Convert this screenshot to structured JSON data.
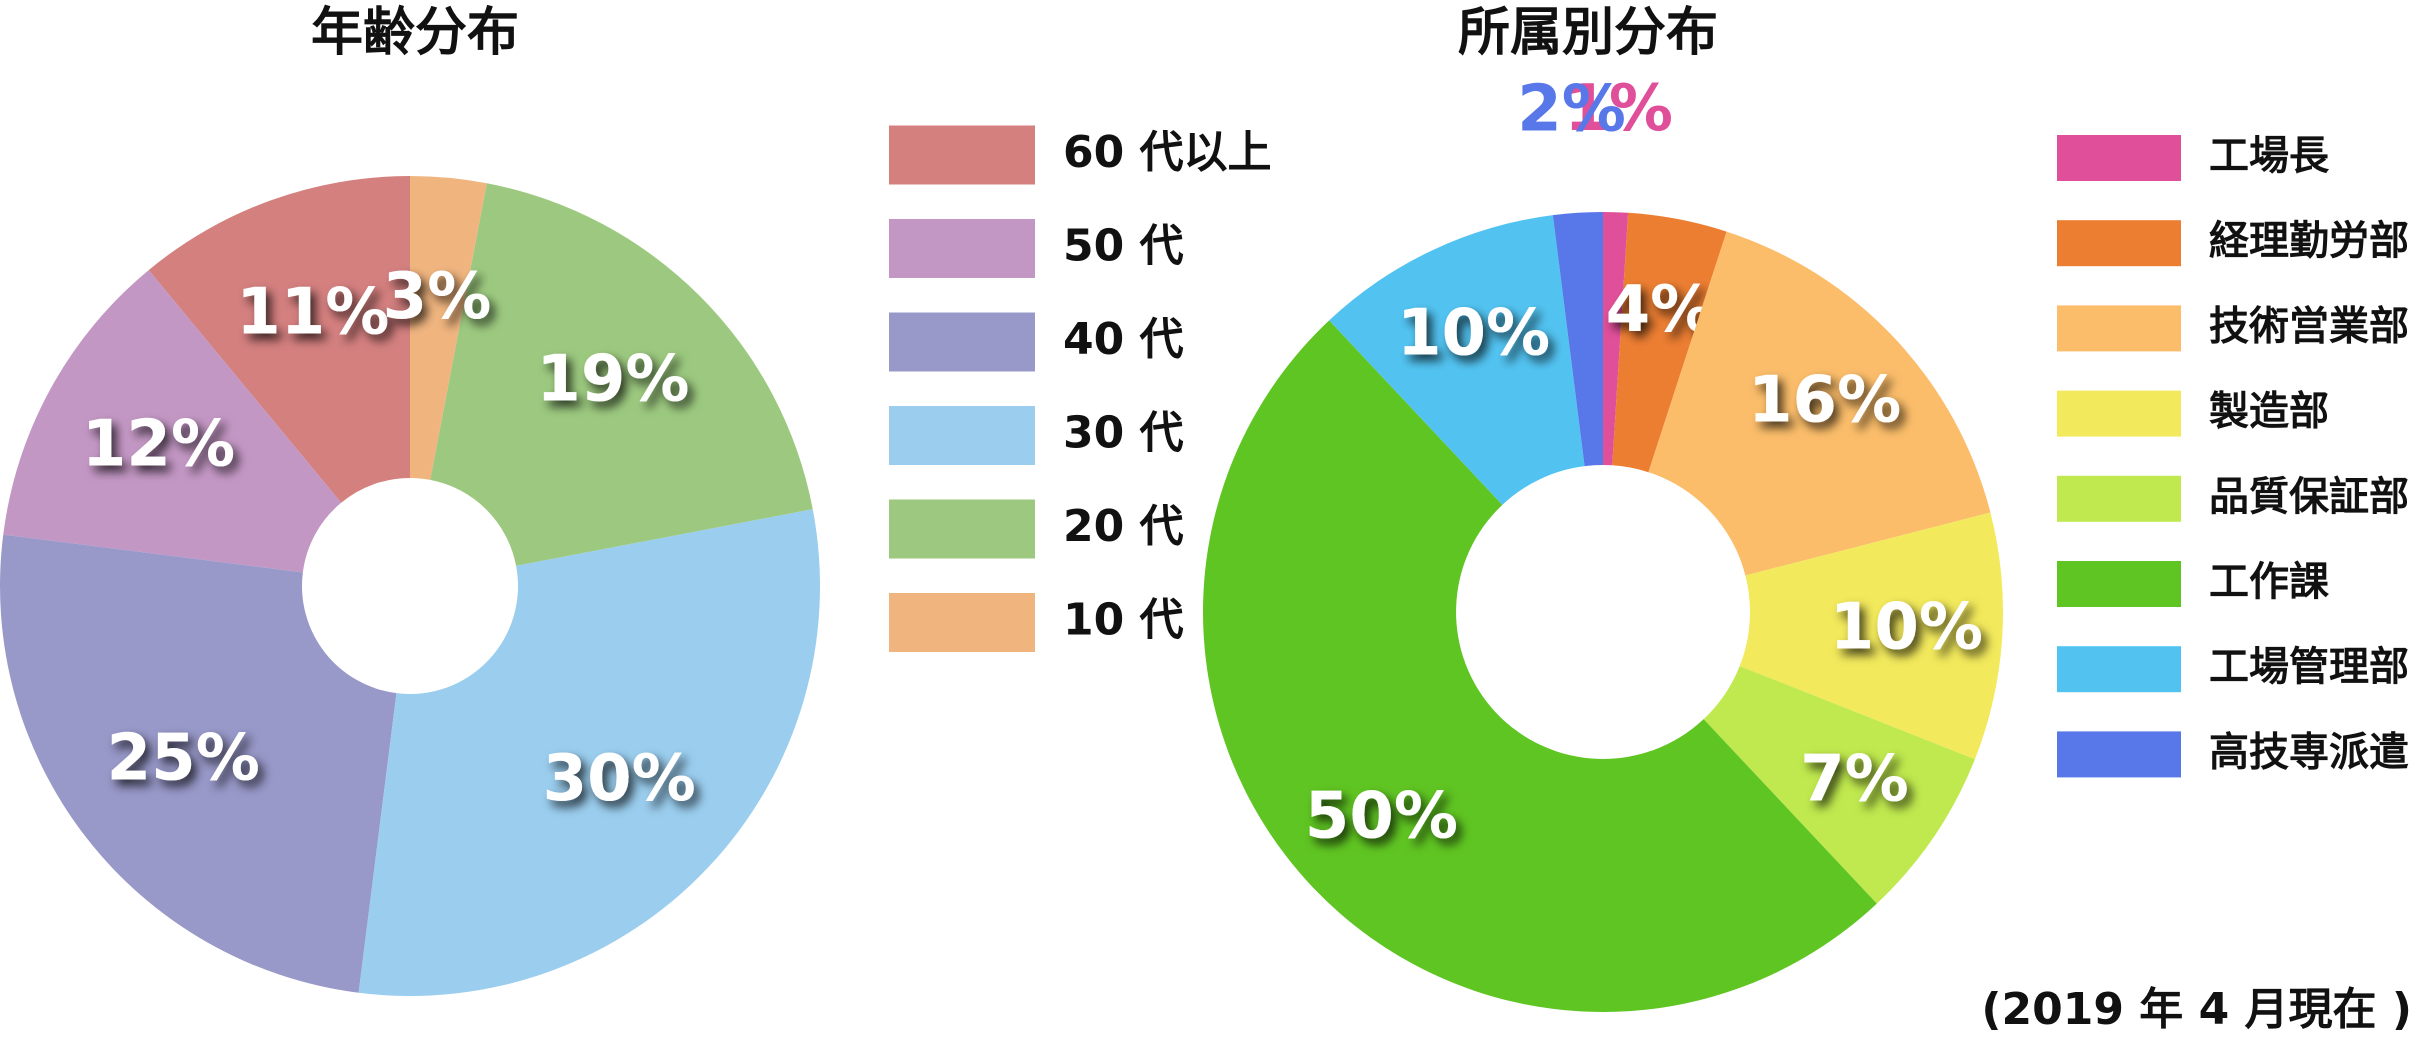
{
  "chart_data": [
    {
      "type": "donut",
      "title": "年齢分布",
      "direction": "counterclockwise",
      "categories": [
        "60 代以上",
        "50 代",
        "40 代",
        "30 代",
        "20 代",
        "10 代"
      ],
      "values": [
        11,
        12,
        25,
        30,
        19,
        3
      ],
      "value_labels": [
        "11%",
        "12%",
        "25%",
        "30%",
        "19%",
        "3%"
      ],
      "colors": [
        "#d4807f",
        "#c397c4",
        "#9898c9",
        "#9acdee",
        "#9cc97f",
        "#f0b57f"
      ]
    },
    {
      "type": "donut",
      "title": "所属別分布",
      "direction": "clockwise",
      "categories": [
        "工場長",
        "経理勤労部",
        "技術営業部",
        "製造部",
        "品質保証部",
        "工作課",
        "工場管理部",
        "高技専派遣"
      ],
      "values": [
        1,
        4,
        16,
        10,
        7,
        50,
        10,
        2
      ],
      "value_labels": [
        "1%",
        "4%",
        "16%",
        "10%",
        "7%",
        "50%",
        "10%",
        "2%"
      ],
      "colors": [
        "#e0509a",
        "#ec7e32",
        "#fbbd6a",
        "#f2e95c",
        "#bfe94e",
        "#5fc522",
        "#52c3f1",
        "#5877e8"
      ]
    }
  ],
  "note": "(2019 年 4 月現在 )"
}
